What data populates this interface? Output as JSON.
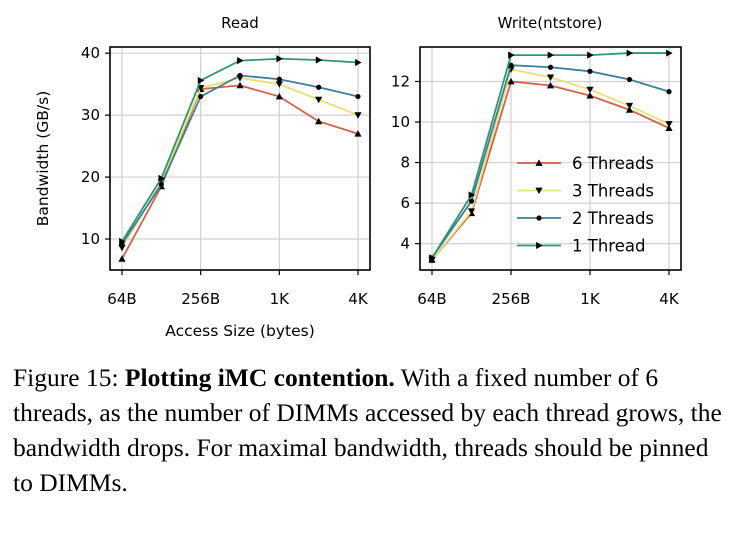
{
  "chart_data": [
    {
      "type": "line",
      "title": "Read",
      "xlabel": "Access Size (bytes)",
      "ylabel": "Bandwidth (GB/s)",
      "x_scale": "log2",
      "x": [
        64,
        128,
        256,
        512,
        1024,
        2048,
        4096
      ],
      "xticks": [
        64,
        256,
        1024,
        4096
      ],
      "xtick_labels": [
        "64B",
        "256B",
        "1K",
        "4K"
      ],
      "ylim": [
        5,
        41
      ],
      "yticks": [
        10,
        20,
        30,
        40
      ],
      "ytick_labels": [
        "10",
        "20",
        "30",
        "40"
      ],
      "grid": true,
      "series": [
        {
          "name": "6 Threads",
          "color": "#d4604a",
          "marker": "triangle-up",
          "values": [
            6.8,
            18.5,
            34.2,
            34.8,
            33.0,
            29.0,
            27.0
          ]
        },
        {
          "name": "3 Threads",
          "color": "#e8e070",
          "marker": "triangle-down",
          "values": [
            8.6,
            19.2,
            34.4,
            36.0,
            35.0,
            32.5,
            30.0
          ]
        },
        {
          "name": "2 Threads",
          "color": "#3d7e9a",
          "marker": "circle",
          "values": [
            9.2,
            18.8,
            33.0,
            36.4,
            35.8,
            34.5,
            33.0
          ]
        },
        {
          "name": "1 Thread",
          "color": "#2a9a6e",
          "marker": "triangle-right",
          "values": [
            9.6,
            19.8,
            35.6,
            38.8,
            39.1,
            38.9,
            38.5
          ]
        }
      ]
    },
    {
      "type": "line",
      "title": "Write(ntstore)",
      "xlabel": "",
      "ylabel": "",
      "x_scale": "log2",
      "x": [
        64,
        128,
        256,
        512,
        1024,
        2048,
        4096
      ],
      "xticks": [
        64,
        256,
        1024,
        4096
      ],
      "xtick_labels": [
        "64B",
        "256B",
        "1K",
        "4K"
      ],
      "ylim": [
        2.7,
        13.7
      ],
      "yticks": [
        4,
        6,
        8,
        10,
        12
      ],
      "ytick_labels": [
        "4",
        "6",
        "8",
        "10",
        "12"
      ],
      "grid": true,
      "legend": "center-right",
      "series": [
        {
          "name": "6 Threads",
          "color": "#d4604a",
          "marker": "triangle-up",
          "values": [
            3.2,
            5.5,
            12.0,
            11.8,
            11.3,
            10.6,
            9.7
          ]
        },
        {
          "name": "3 Threads",
          "color": "#e8e070",
          "marker": "triangle-down",
          "values": [
            3.2,
            5.6,
            12.6,
            12.2,
            11.6,
            10.8,
            9.9
          ]
        },
        {
          "name": "2 Threads",
          "color": "#3d7e9a",
          "marker": "circle",
          "values": [
            3.3,
            6.1,
            12.8,
            12.7,
            12.5,
            12.1,
            11.5
          ]
        },
        {
          "name": "1 Thread",
          "color": "#2a9a6e",
          "marker": "triangle-right",
          "values": [
            3.3,
            6.4,
            13.3,
            13.3,
            13.3,
            13.4,
            13.4
          ]
        }
      ]
    }
  ],
  "caption": {
    "label": "Figure 15: ",
    "bold": "Plotting iMC contention.",
    "text": " With a fixed number of 6 threads, as the number of DIMMs accessed by each thread grows, the bandwidth drops. For maximal bandwidth, threads should be pinned to DIMMs."
  }
}
